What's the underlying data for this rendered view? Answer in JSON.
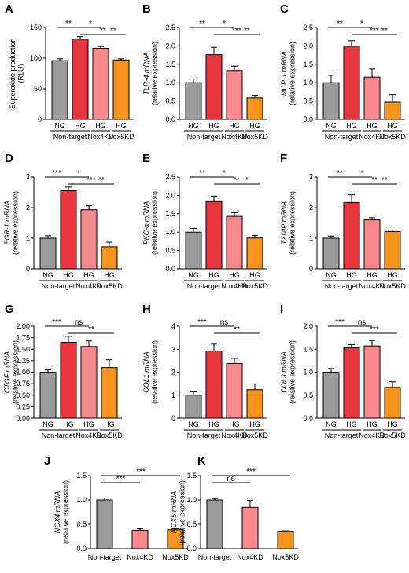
{
  "colors": {
    "ng": "#9b9b9b",
    "hg": "#e8363f",
    "nox4": "#f7888c",
    "nox5": "#f7941d"
  },
  "chart_data": [
    {
      "id": "A",
      "type": "bar",
      "ylabel": "Superoxide production (RLU)",
      "yticks": [
        0,
        50,
        100,
        150
      ],
      "ylim": [
        0,
        150
      ],
      "bars": [
        {
          "top": "NG",
          "color": "ng",
          "value": 96,
          "err": 3
        },
        {
          "top": "HG",
          "color": "hg",
          "value": 131,
          "err": 4
        },
        {
          "top": "HG",
          "color": "nox4",
          "value": 116,
          "err": 3
        },
        {
          "top": "HG",
          "color": "nox5",
          "value": 97,
          "err": 2
        }
      ],
      "groups": [
        {
          "label": "Non-target",
          "bars": [
            0,
            1
          ]
        },
        {
          "label": "Nox4KD",
          "bars": [
            2
          ]
        },
        {
          "label": "Nox5KD",
          "bars": [
            3
          ]
        }
      ],
      "sig": [
        {
          "from": 0,
          "to": 1,
          "label": "**"
        },
        {
          "from": 1,
          "to": 3,
          "label": "**"
        },
        {
          "from": 1,
          "to": 2,
          "label": "*"
        },
        {
          "from": 2,
          "to": 3,
          "label": "**"
        }
      ]
    },
    {
      "id": "B",
      "type": "bar",
      "ylabel": "TLR-4 mRNA (relative expression)",
      "yticks": [
        0.0,
        0.5,
        1.0,
        1.5,
        2.0,
        2.5
      ],
      "ylim": [
        0,
        2.5
      ],
      "bars": [
        {
          "top": "NG",
          "color": "ng",
          "value": 1.0,
          "err": 0.1
        },
        {
          "top": "HG",
          "color": "hg",
          "value": 1.76,
          "err": 0.2
        },
        {
          "top": "HG",
          "color": "nox4",
          "value": 1.33,
          "err": 0.12
        },
        {
          "top": "HG",
          "color": "nox5",
          "value": 0.58,
          "err": 0.07
        }
      ],
      "groups": [
        {
          "label": "Non-target",
          "bars": [
            0,
            1
          ]
        },
        {
          "label": "Nox4KD",
          "bars": [
            2
          ]
        },
        {
          "label": "Nox5KD",
          "bars": [
            3
          ]
        }
      ],
      "sig": [
        {
          "from": 0,
          "to": 1,
          "label": "**"
        },
        {
          "from": 1,
          "to": 3,
          "label": "***"
        },
        {
          "from": 1,
          "to": 2,
          "label": "*"
        },
        {
          "from": 2,
          "to": 3,
          "label": "**"
        }
      ]
    },
    {
      "id": "C",
      "type": "bar",
      "ylabel": "MCP-1 mRNA (relative expression)",
      "yticks": [
        0.0,
        0.5,
        1.0,
        1.5,
        2.0,
        2.5
      ],
      "ylim": [
        0,
        2.5
      ],
      "bars": [
        {
          "top": "NG",
          "color": "ng",
          "value": 1.0,
          "err": 0.2
        },
        {
          "top": "HG",
          "color": "hg",
          "value": 1.99,
          "err": 0.15
        },
        {
          "top": "HG",
          "color": "nox4",
          "value": 1.15,
          "err": 0.22
        },
        {
          "top": "HG",
          "color": "nox5",
          "value": 0.47,
          "err": 0.2
        }
      ],
      "groups": [
        {
          "label": "Non-target",
          "bars": [
            0,
            1
          ]
        },
        {
          "label": "Nox4KD",
          "bars": [
            2
          ]
        },
        {
          "label": "Nox5KD",
          "bars": [
            3
          ]
        }
      ],
      "sig": [
        {
          "from": 0,
          "to": 1,
          "label": "**"
        },
        {
          "from": 1,
          "to": 3,
          "label": "***"
        },
        {
          "from": 1,
          "to": 2,
          "label": "*"
        },
        {
          "from": 2,
          "to": 3,
          "label": "**"
        }
      ]
    },
    {
      "id": "D",
      "type": "bar",
      "ylabel": "EGR-1 mRNA (relative expression)",
      "yticks": [
        0,
        1,
        2,
        3
      ],
      "ylim": [
        0,
        3
      ],
      "bars": [
        {
          "top": "NG",
          "color": "ng",
          "value": 1.0,
          "err": 0.08
        },
        {
          "top": "HG",
          "color": "hg",
          "value": 2.55,
          "err": 0.12
        },
        {
          "top": "HG",
          "color": "nox4",
          "value": 1.93,
          "err": 0.13
        },
        {
          "top": "HG",
          "color": "nox5",
          "value": 0.72,
          "err": 0.15
        }
      ],
      "groups": [
        {
          "label": "Non-target",
          "bars": [
            0,
            1
          ]
        },
        {
          "label": "Nox4KD",
          "bars": [
            2
          ]
        },
        {
          "label": "Nox5KD",
          "bars": [
            3
          ]
        }
      ],
      "sig": [
        {
          "from": 0,
          "to": 1,
          "label": "***"
        },
        {
          "from": 1,
          "to": 3,
          "label": "***"
        },
        {
          "from": 1,
          "to": 2,
          "label": "*"
        },
        {
          "from": 2,
          "to": 3,
          "label": "**"
        }
      ]
    },
    {
      "id": "E",
      "type": "bar",
      "ylabel": "PKC-α mRNA (relative expression)",
      "yticks": [
        0.0,
        0.5,
        1.0,
        1.5,
        2.0,
        2.5
      ],
      "ylim": [
        0,
        2.5
      ],
      "bars": [
        {
          "top": "NG",
          "color": "ng",
          "value": 1.0,
          "err": 0.1
        },
        {
          "top": "HG",
          "color": "hg",
          "value": 1.83,
          "err": 0.15
        },
        {
          "top": "HG",
          "color": "nox4",
          "value": 1.43,
          "err": 0.1
        },
        {
          "top": "HG",
          "color": "nox5",
          "value": 0.84,
          "err": 0.07
        }
      ],
      "groups": [
        {
          "label": "Non-target",
          "bars": [
            0,
            1
          ]
        },
        {
          "label": "Nox4KD",
          "bars": [
            2
          ]
        },
        {
          "label": "Nox5KD",
          "bars": [
            3
          ]
        }
      ],
      "sig": [
        {
          "from": 0,
          "to": 1,
          "label": "**"
        },
        {
          "from": 1,
          "to": 3,
          "label": "**"
        },
        {
          "from": 1,
          "to": 2,
          "label": "*"
        },
        {
          "from": 2,
          "to": 3,
          "label": "*"
        }
      ]
    },
    {
      "id": "F",
      "type": "bar",
      "ylabel": "TXNIP mRNA (relative expression)",
      "yticks": [
        0,
        1,
        2,
        3
      ],
      "ylim": [
        0,
        3
      ],
      "bars": [
        {
          "top": "NG",
          "color": "ng",
          "value": 1.0,
          "err": 0.07
        },
        {
          "top": "HG",
          "color": "hg",
          "value": 2.17,
          "err": 0.25
        },
        {
          "top": "HG",
          "color": "nox4",
          "value": 1.6,
          "err": 0.07
        },
        {
          "top": "HG",
          "color": "nox5",
          "value": 1.22,
          "err": 0.05
        }
      ],
      "groups": [
        {
          "label": "Non-target",
          "bars": [
            0,
            1
          ]
        },
        {
          "label": "Nox4KD",
          "bars": [
            2
          ]
        },
        {
          "label": "Nox5KD",
          "bars": [
            3
          ]
        }
      ],
      "sig": [
        {
          "from": 0,
          "to": 1,
          "label": "**"
        },
        {
          "from": 1,
          "to": 3,
          "label": "**"
        },
        {
          "from": 1,
          "to": 2,
          "label": "*"
        },
        {
          "from": 2,
          "to": 3,
          "label": "**"
        }
      ]
    },
    {
      "id": "G",
      "type": "bar",
      "ylabel": "CTGF mRNA (relative expression)",
      "yticks": [
        0.0,
        0.25,
        0.5,
        0.75,
        1.0,
        1.25,
        1.5,
        1.75,
        2.0
      ],
      "ylim": [
        0,
        2
      ],
      "bars": [
        {
          "top": "NG",
          "color": "ng",
          "value": 1.0,
          "err": 0.05
        },
        {
          "top": "HG",
          "color": "hg",
          "value": 1.65,
          "err": 0.13
        },
        {
          "top": "HG",
          "color": "nox4",
          "value": 1.56,
          "err": 0.12
        },
        {
          "top": "HG",
          "color": "nox5",
          "value": 1.1,
          "err": 0.17
        }
      ],
      "groups": [
        {
          "label": "Non-target",
          "bars": [
            0,
            1
          ]
        },
        {
          "label": "Nox4KD",
          "bars": [
            2
          ]
        },
        {
          "label": "Nox5KD",
          "bars": [
            3
          ]
        }
      ],
      "sig": [
        {
          "from": 0,
          "to": 1,
          "label": "***"
        },
        {
          "from": 1,
          "to": 3,
          "label": "**"
        },
        {
          "from": 1,
          "to": 2,
          "label": "ns"
        }
      ]
    },
    {
      "id": "H",
      "type": "bar",
      "ylabel": "COL1 mRNA (relative expression)",
      "yticks": [
        0,
        1,
        2,
        3,
        4
      ],
      "ylim": [
        0,
        4
      ],
      "bars": [
        {
          "top": "NG",
          "color": "ng",
          "value": 1.0,
          "err": 0.15
        },
        {
          "top": "HG",
          "color": "hg",
          "value": 2.92,
          "err": 0.3
        },
        {
          "top": "HG",
          "color": "nox4",
          "value": 2.38,
          "err": 0.22
        },
        {
          "top": "HG",
          "color": "nox5",
          "value": 1.24,
          "err": 0.25
        }
      ],
      "groups": [
        {
          "label": "Non-target",
          "bars": [
            0,
            1
          ]
        },
        {
          "label": "Nox4KD",
          "bars": [
            2
          ]
        },
        {
          "label": "Nox5KD",
          "bars": [
            3
          ]
        }
      ],
      "sig": [
        {
          "from": 0,
          "to": 1,
          "label": "***"
        },
        {
          "from": 1,
          "to": 3,
          "label": "**"
        },
        {
          "from": 1,
          "to": 2,
          "label": "ns"
        }
      ]
    },
    {
      "id": "I",
      "type": "bar",
      "ylabel": "COL3 mRNA (relative expression)",
      "yticks": [
        0.0,
        0.5,
        1.0,
        1.5,
        2.0
      ],
      "ylim": [
        0,
        2
      ],
      "bars": [
        {
          "top": "NG",
          "color": "ng",
          "value": 1.0,
          "err": 0.08
        },
        {
          "top": "HG",
          "color": "hg",
          "value": 1.53,
          "err": 0.07
        },
        {
          "top": "HG",
          "color": "nox4",
          "value": 1.57,
          "err": 0.12
        },
        {
          "top": "HG",
          "color": "nox5",
          "value": 0.67,
          "err": 0.12
        }
      ],
      "groups": [
        {
          "label": "Non-target",
          "bars": [
            0,
            1
          ]
        },
        {
          "label": "Nox4KD",
          "bars": [
            2
          ]
        },
        {
          "label": "Nox5KD",
          "bars": [
            3
          ]
        }
      ],
      "sig": [
        {
          "from": 0,
          "to": 1,
          "label": "***"
        },
        {
          "from": 1,
          "to": 3,
          "label": "***"
        },
        {
          "from": 1,
          "to": 2,
          "label": "ns"
        }
      ]
    },
    {
      "id": "J",
      "type": "bar",
      "ylabel": "NOX4 mRNA (relative expression)",
      "yticks": [
        0.0,
        0.5,
        1.0,
        1.5
      ],
      "ylim": [
        0,
        1.5
      ],
      "bars": [
        {
          "color": "ng",
          "value": 1.0,
          "err": 0.04
        },
        {
          "color": "nox4",
          "value": 0.38,
          "err": 0.03
        },
        {
          "color": "nox5",
          "value": 0.39,
          "err": 0.02
        }
      ],
      "groups": [
        {
          "label": "Non-target",
          "bars": [
            0
          ]
        },
        {
          "label": "Nox4KD",
          "bars": [
            1
          ]
        },
        {
          "label": "Nox5KD",
          "bars": [
            2
          ]
        }
      ],
      "sig": [
        {
          "from": 0,
          "to": 2,
          "label": "***"
        },
        {
          "from": 0,
          "to": 1,
          "label": "***"
        }
      ]
    },
    {
      "id": "K",
      "type": "bar",
      "ylabel": "NOX5 mRNA (relative expression)",
      "yticks": [
        0.0,
        0.5,
        1.0,
        1.5
      ],
      "ylim": [
        0,
        1.5
      ],
      "bars": [
        {
          "color": "ng",
          "value": 1.0,
          "err": 0.03
        },
        {
          "color": "nox4",
          "value": 0.85,
          "err": 0.14
        },
        {
          "color": "nox5",
          "value": 0.35,
          "err": 0.02
        }
      ],
      "groups": [
        {
          "label": "Non-target",
          "bars": [
            0
          ]
        },
        {
          "label": "Nox4KD",
          "bars": [
            1
          ]
        },
        {
          "label": "Nox5KD",
          "bars": [
            2
          ]
        }
      ],
      "sig": [
        {
          "from": 0,
          "to": 2,
          "label": "***"
        },
        {
          "from": 0,
          "to": 1,
          "label": "ns"
        }
      ]
    }
  ]
}
